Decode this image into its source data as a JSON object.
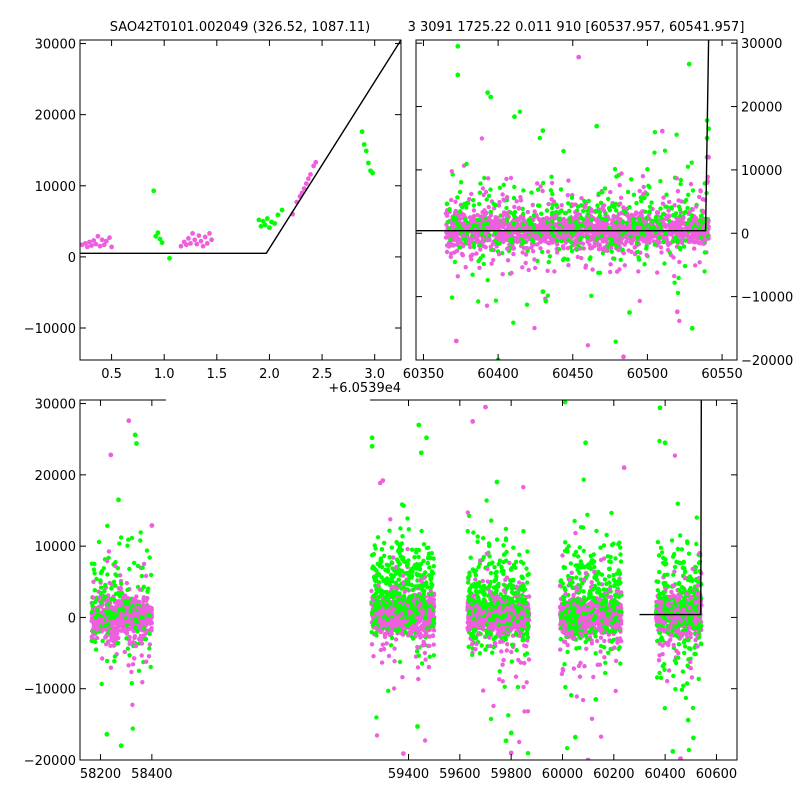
{
  "titles": {
    "left": "SAO42T0101.002049 (326.52, 1087.11)",
    "right": "3 3091 1725.22 0.011 910 [60537.957, 60541.957]"
  },
  "colors": {
    "series_a": "#ee5fdd",
    "series_b": "#00ff00",
    "model": "#000000",
    "frame": "#000000"
  },
  "chart_data": [
    {
      "id": "zoom",
      "type": "scatter",
      "xlim": [
        0.2,
        3.25
      ],
      "ylim": [
        -14500,
        30500
      ],
      "x_offset_label": "+6.0539e4",
      "xticks": [
        0.5,
        1.0,
        1.5,
        2.0,
        2.5,
        3.0
      ],
      "xtick_labels": [
        "0.5",
        "1.0",
        "1.5",
        "2.0",
        "2.5",
        "3.0"
      ],
      "yticks": [
        -10000,
        0,
        10000,
        20000,
        30000
      ],
      "ytick_labels": [
        "−10000",
        "0",
        "10000",
        "20000",
        "30000"
      ],
      "ytick_side": "left",
      "grid": false,
      "model_line": [
        [
          0.2,
          500
        ],
        [
          1.93,
          500
        ],
        [
          1.97,
          500
        ],
        [
          3.25,
          30500
        ]
      ],
      "series": [
        {
          "color_key": "series_a",
          "points": [
            [
              0.22,
              1700
            ],
            [
              0.25,
              1900
            ],
            [
              0.27,
              1400
            ],
            [
              0.29,
              2100
            ],
            [
              0.31,
              1600
            ],
            [
              0.33,
              2300
            ],
            [
              0.35,
              1800
            ],
            [
              0.37,
              2900
            ],
            [
              0.39,
              1500
            ],
            [
              0.41,
              2400
            ],
            [
              0.43,
              1700
            ],
            [
              0.45,
              2200
            ],
            [
              0.48,
              2700
            ],
            [
              0.5,
              1400
            ],
            [
              1.16,
              1500
            ],
            [
              1.19,
              2100
            ],
            [
              1.21,
              1700
            ],
            [
              1.23,
              2600
            ],
            [
              1.25,
              1900
            ],
            [
              1.27,
              3300
            ],
            [
              1.29,
              2400
            ],
            [
              1.31,
              1800
            ],
            [
              1.33,
              3000
            ],
            [
              1.35,
              2200
            ],
            [
              1.37,
              1500
            ],
            [
              1.39,
              2800
            ],
            [
              1.41,
              1900
            ],
            [
              1.43,
              3300
            ],
            [
              1.45,
              2400
            ],
            [
              2.22,
              6000
            ],
            [
              2.26,
              7700
            ],
            [
              2.29,
              8500
            ],
            [
              2.31,
              9000
            ],
            [
              2.33,
              9600
            ],
            [
              2.35,
              10300
            ],
            [
              2.37,
              11000
            ],
            [
              2.39,
              11600
            ],
            [
              2.42,
              12800
            ],
            [
              2.44,
              13300
            ]
          ]
        },
        {
          "color_key": "series_b",
          "points": [
            [
              0.9,
              9300
            ],
            [
              0.92,
              2900
            ],
            [
              0.94,
              3400
            ],
            [
              0.96,
              2500
            ],
            [
              0.98,
              2000
            ],
            [
              1.05,
              -200
            ],
            [
              1.9,
              5200
            ],
            [
              1.92,
              4300
            ],
            [
              1.94,
              5000
            ],
            [
              1.96,
              4500
            ],
            [
              1.98,
              5400
            ],
            [
              2.0,
              4100
            ],
            [
              2.02,
              4900
            ],
            [
              2.05,
              4700
            ],
            [
              2.08,
              5900
            ],
            [
              2.12,
              6600
            ],
            [
              2.88,
              17600
            ],
            [
              2.9,
              15800
            ],
            [
              2.92,
              14900
            ],
            [
              2.94,
              13200
            ],
            [
              2.96,
              12100
            ],
            [
              2.98,
              11800
            ]
          ]
        }
      ]
    },
    {
      "id": "recent",
      "type": "scatter",
      "xlim": [
        60345,
        60560
      ],
      "ylim": [
        -20000,
        30500
      ],
      "xticks": [
        60350,
        60400,
        60450,
        60500,
        60550
      ],
      "xtick_labels": [
        "60350",
        "60400",
        "60450",
        "60500",
        "60550"
      ],
      "yticks": [
        -20000,
        -10000,
        0,
        10000,
        20000,
        30000
      ],
      "ytick_labels": [
        "−20000",
        "−10000",
        "0",
        "10000",
        "20000",
        "30000"
      ],
      "ytick_side": "right",
      "grid": false,
      "model_line": [
        [
          60345,
          400
        ],
        [
          60539,
          400
        ],
        [
          60541,
          30500
        ]
      ],
      "clusters": [
        {
          "x_range": [
            60365,
            60541
          ],
          "y_center": 500,
          "spread": 1300,
          "color_key": "series_a",
          "n": 1700,
          "seed": 11
        },
        {
          "x_range": [
            60365,
            60541
          ],
          "y_center": 1800,
          "spread": 3200,
          "color_key": "series_b",
          "n": 420,
          "seed": 23
        },
        {
          "x_range": [
            60365,
            60541
          ],
          "y_center": 300,
          "spread": 4000,
          "color_key": "series_a",
          "n": 160,
          "seed": 31
        }
      ],
      "series": [
        {
          "color_key": "series_b",
          "points": [
            [
              60373,
              29500
            ],
            [
              60373,
              25000
            ],
            [
              60393,
              22200
            ],
            [
              60395,
              21500
            ],
            [
              60411,
              18400
            ],
            [
              60430,
              16200
            ],
            [
              60466,
              16900
            ],
            [
              60528,
              26700
            ],
            [
              60430,
              -9200
            ],
            [
              60432,
              -10700
            ],
            [
              60488,
              -12500
            ],
            [
              60530,
              -15000
            ],
            [
              60400,
              -20000
            ],
            [
              60540,
              17800
            ],
            [
              60541,
              16500
            ],
            [
              60540,
              15000
            ],
            [
              60540,
              12000
            ]
          ]
        },
        {
          "color_key": "series_a",
          "points": [
            [
              60454,
              27800
            ],
            [
              60372,
              -17000
            ],
            [
              60484,
              -19500
            ],
            [
              60520,
              -12400
            ],
            [
              60510,
              16100
            ],
            [
              60541,
              12000
            ],
            [
              60540,
              8000
            ]
          ]
        }
      ]
    },
    {
      "id": "full",
      "type": "scatter",
      "xlim": [
        58120,
        60680
      ],
      "ylim": [
        -20000,
        30500
      ],
      "xticks": [
        58200,
        58400,
        59400,
        59600,
        59800,
        60000,
        60200,
        60400,
        60600
      ],
      "xtick_labels": [
        "58200",
        "58400",
        "59400",
        "59600",
        "59800",
        "60000",
        "60200",
        "60400",
        "60600"
      ],
      "yticks": [
        -20000,
        -10000,
        0,
        10000,
        20000,
        30000
      ],
      "ytick_labels": [
        "−20000",
        "−10000",
        "0",
        "10000",
        "20000",
        "30000"
      ],
      "ytick_side": "left",
      "grid": false,
      "broken_axis": [
        58455,
        59250
      ],
      "model_line": [
        [
          60300,
          400
        ],
        [
          60539,
          400
        ],
        [
          60541,
          30500
        ]
      ],
      "clusters": [
        {
          "x_range": [
            58165,
            58400
          ],
          "y_center": 0,
          "spread": 1200,
          "color_key": "series_a",
          "n": 650,
          "seed": 101
        },
        {
          "x_range": [
            58165,
            58400
          ],
          "y_center": 1500,
          "spread": 4000,
          "color_key": "series_b",
          "n": 150,
          "seed": 102
        },
        {
          "x_range": [
            58165,
            58400
          ],
          "y_center": -1000,
          "spread": 4500,
          "color_key": "series_a",
          "n": 60,
          "seed": 103
        },
        {
          "x_range": [
            59255,
            59500
          ],
          "y_center": 500,
          "spread": 1200,
          "color_key": "series_a",
          "n": 750,
          "seed": 201
        },
        {
          "x_range": [
            59255,
            59500
          ],
          "y_center": 3500,
          "spread": 3600,
          "color_key": "series_b",
          "n": 360,
          "seed": 202
        },
        {
          "x_range": [
            59255,
            59500
          ],
          "y_center": -1000,
          "spread": 4500,
          "color_key": "series_a",
          "n": 70,
          "seed": 203
        },
        {
          "x_range": [
            59630,
            59870
          ],
          "y_center": 300,
          "spread": 1200,
          "color_key": "series_a",
          "n": 700,
          "seed": 301
        },
        {
          "x_range": [
            59630,
            59870
          ],
          "y_center": 2500,
          "spread": 3800,
          "color_key": "series_b",
          "n": 300,
          "seed": 302
        },
        {
          "x_range": [
            59630,
            59870
          ],
          "y_center": -2000,
          "spread": 5000,
          "color_key": "series_a",
          "n": 70,
          "seed": 303
        },
        {
          "x_range": [
            59990,
            60230
          ],
          "y_center": 300,
          "spread": 1200,
          "color_key": "series_a",
          "n": 700,
          "seed": 401
        },
        {
          "x_range": [
            59990,
            60230
          ],
          "y_center": 2500,
          "spread": 3800,
          "color_key": "series_b",
          "n": 300,
          "seed": 402
        },
        {
          "x_range": [
            59990,
            60230
          ],
          "y_center": -1500,
          "spread": 4500,
          "color_key": "series_a",
          "n": 70,
          "seed": 403
        },
        {
          "x_range": [
            60365,
            60541
          ],
          "y_center": 500,
          "spread": 1200,
          "color_key": "series_a",
          "n": 600,
          "seed": 501
        },
        {
          "x_range": [
            60365,
            60541
          ],
          "y_center": 1500,
          "spread": 4500,
          "color_key": "series_b",
          "n": 250,
          "seed": 502
        },
        {
          "x_range": [
            60365,
            60541
          ],
          "y_center": -1000,
          "spread": 4500,
          "color_key": "series_a",
          "n": 60,
          "seed": 503
        }
      ],
      "series": [
        {
          "color_key": "series_b",
          "points": [
            [
              58335,
              25600
            ],
            [
              58340,
              24400
            ],
            [
              58270,
              16500
            ],
            [
              58280,
              -18000
            ],
            [
              58225,
              -16400
            ],
            [
              59258,
              25200
            ],
            [
              59258,
              24000
            ],
            [
              59440,
              27000
            ],
            [
              59470,
              25200
            ],
            [
              59450,
              23100
            ],
            [
              59435,
              -15300
            ],
            [
              59745,
              19000
            ],
            [
              59780,
              -17300
            ],
            [
              59800,
              -16200
            ],
            [
              60010,
              30200
            ],
            [
              60090,
              24500
            ],
            [
              60050,
              -16800
            ],
            [
              60130,
              -11500
            ],
            [
              60380,
              29400
            ],
            [
              60400,
              24500
            ],
            [
              60490,
              -14400
            ],
            [
              60510,
              -16900
            ],
            [
              60430,
              -18800
            ]
          ]
        },
        {
          "color_key": "series_a",
          "points": [
            [
              58240,
              22800
            ],
            [
              58310,
              27600
            ],
            [
              58400,
              12900
            ],
            [
              59300,
              19200
            ],
            [
              59380,
              -19100
            ],
            [
              59650,
              27500
            ],
            [
              59700,
              29500
            ],
            [
              59800,
              -19000
            ],
            [
              60240,
              21000
            ],
            [
              60100,
              -20000
            ],
            [
              60460,
              -19800
            ],
            [
              60535,
              9000
            ]
          ]
        }
      ]
    }
  ]
}
